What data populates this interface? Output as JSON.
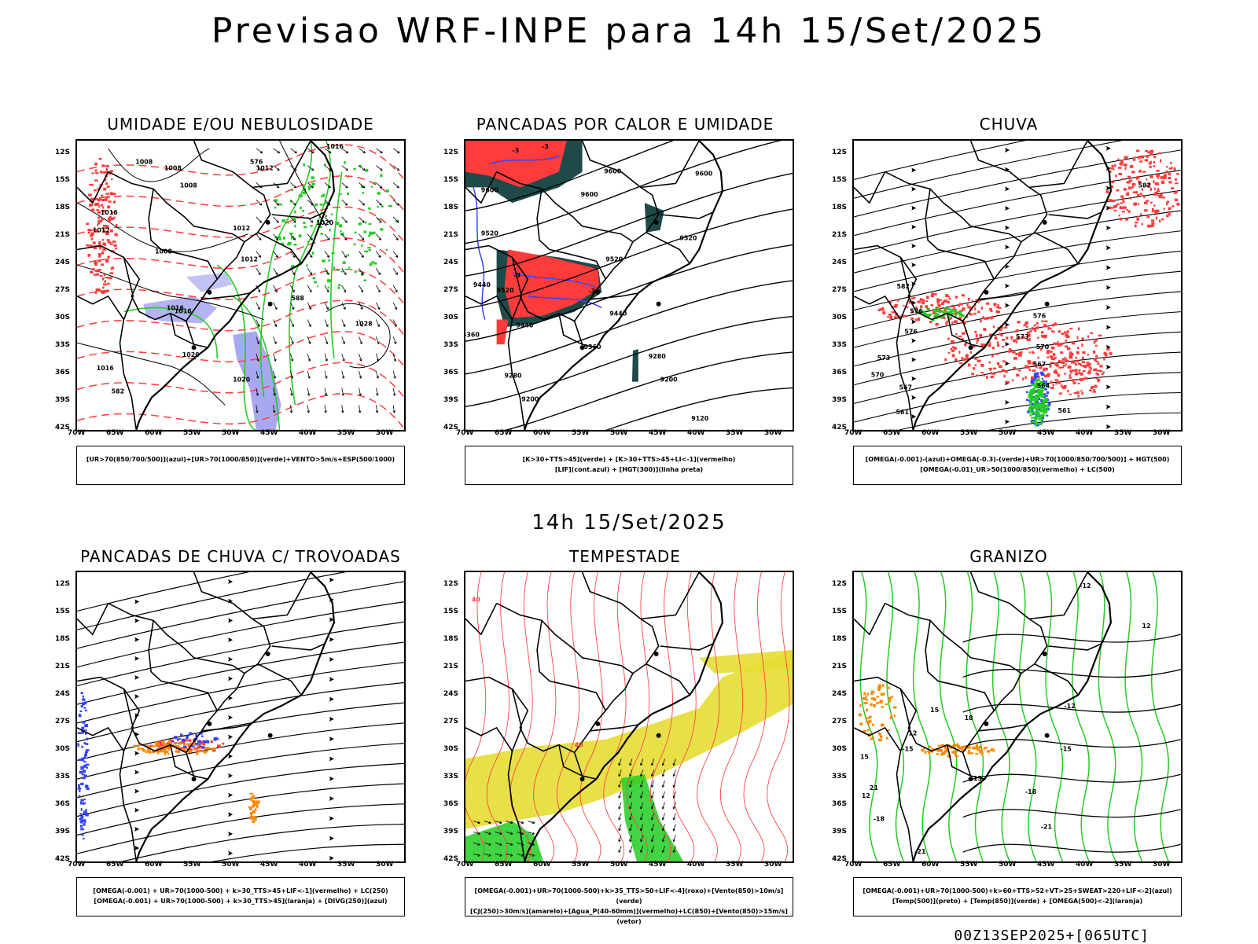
{
  "title": "Previsao WRF-INPE  para 14h 15/Set/2025",
  "mid_title": "14h 15/Set/2025",
  "footer": "00Z13SEP2025+[065UTC]",
  "axes": {
    "lat_labels": [
      "12S",
      "15S",
      "18S",
      "21S",
      "24S",
      "27S",
      "30S",
      "33S",
      "36S",
      "39S",
      "42S"
    ],
    "lon_labels": [
      "70W",
      "65W",
      "60W",
      "55W",
      "50W",
      "45W",
      "40W",
      "35W",
      "30W"
    ]
  },
  "colors": {
    "red": "#ff3b3b",
    "green": "#22cc22",
    "blue": "#3344ff",
    "lavender": "#9999ee",
    "teal": "#1e4a4a",
    "yellow": "#e6dd33",
    "orange": "#ff8800"
  },
  "panels": [
    {
      "title": "UMIDADE E/OU NEBULOSIDADE",
      "legend": [
        "[UR>70(850/700/500)](azul)+[UR>70(1000/850)](verde)+VENTO>5m/s+ESP(500/1000)"
      ],
      "labels": [
        {
          "t": "1008",
          "x": 75,
          "y": 30
        },
        {
          "t": "1008",
          "x": 112,
          "y": 38
        },
        {
          "t": "1008",
          "x": 132,
          "y": 60
        },
        {
          "t": "1016",
          "x": 320,
          "y": 10
        },
        {
          "t": "1012",
          "x": 230,
          "y": 38
        },
        {
          "t": "576",
          "x": 222,
          "y": 30
        },
        {
          "t": "1012",
          "x": 200,
          "y": 115
        },
        {
          "t": "1020",
          "x": 307,
          "y": 108
        },
        {
          "t": "1008",
          "x": 100,
          "y": 145
        },
        {
          "t": "1012",
          "x": 210,
          "y": 155
        },
        {
          "t": "1016",
          "x": 115,
          "y": 218
        },
        {
          "t": "1016",
          "x": 125,
          "y": 222
        },
        {
          "t": "1020",
          "x": 135,
          "y": 278
        },
        {
          "t": "1028",
          "x": 357,
          "y": 238
        },
        {
          "t": "1020",
          "x": 200,
          "y": 310
        },
        {
          "t": "1016",
          "x": 25,
          "y": 295
        },
        {
          "t": "582",
          "x": 44,
          "y": 325
        },
        {
          "t": "588",
          "x": 275,
          "y": 205
        },
        {
          "t": "1012",
          "x": 20,
          "y": 118
        },
        {
          "t": "1016",
          "x": 30,
          "y": 95
        }
      ]
    },
    {
      "title": "PANCADAS POR CALOR E UMIDADE",
      "legend": [
        "[K>30+TTS>45](verde) + [K>30+TTS>45+LI<-1](vermelho)",
        "[LIF](cont.azul) + [HGT(300)](linha preta)"
      ],
      "labels": [
        {
          "t": "9600",
          "x": 20,
          "y": 66
        },
        {
          "t": "9600",
          "x": 178,
          "y": 42
        },
        {
          "t": "9600",
          "x": 148,
          "y": 72
        },
        {
          "t": "9600",
          "x": 295,
          "y": 45
        },
        {
          "t": "9520",
          "x": 20,
          "y": 122
        },
        {
          "t": "9520",
          "x": 275,
          "y": 128
        },
        {
          "t": "9520",
          "x": 180,
          "y": 155
        },
        {
          "t": "9520",
          "x": 40,
          "y": 195
        },
        {
          "t": "9440",
          "x": 10,
          "y": 188
        },
        {
          "t": "9440",
          "x": 65,
          "y": 240
        },
        {
          "t": "9440",
          "x": 185,
          "y": 225
        },
        {
          "t": "9360",
          "x": 152,
          "y": 268
        },
        {
          "t": "9280",
          "x": 50,
          "y": 305
        },
        {
          "t": "9280",
          "x": 235,
          "y": 280
        },
        {
          "t": "9200",
          "x": 250,
          "y": 310
        },
        {
          "t": "9200",
          "x": 72,
          "y": 335
        },
        {
          "t": "9120",
          "x": 290,
          "y": 360
        },
        {
          "t": "-3",
          "x": 60,
          "y": 15
        },
        {
          "t": "-3",
          "x": 98,
          "y": 10
        },
        {
          "t": "-3",
          "x": 62,
          "y": 176
        },
        {
          "t": "-3",
          "x": 158,
          "y": 196
        },
        {
          "t": "-360",
          "x": -2,
          "y": 252
        }
      ]
    },
    {
      "title": "CHUVA",
      "legend": [
        "[OMEGA(-0.001)-(azul)+OMEGA(-0.3)-(verde)+UR>70(1000/850/700/500)] + HGT(500)",
        "[OMEGA(-0.01)_UR>50(1000/850)(vermelho) + LC(500)"
      ],
      "labels": [
        {
          "t": "582",
          "x": 365,
          "y": 60
        },
        {
          "t": "582",
          "x": 55,
          "y": 190
        },
        {
          "t": "576",
          "x": 72,
          "y": 222
        },
        {
          "t": "576",
          "x": 65,
          "y": 248
        },
        {
          "t": "576",
          "x": 230,
          "y": 228
        },
        {
          "t": "573",
          "x": 208,
          "y": 255
        },
        {
          "t": "573",
          "x": 30,
          "y": 282
        },
        {
          "t": "570",
          "x": 234,
          "y": 268
        },
        {
          "t": "570",
          "x": 22,
          "y": 304
        },
        {
          "t": "567",
          "x": 58,
          "y": 320
        },
        {
          "t": "567",
          "x": 230,
          "y": 290
        },
        {
          "t": "564",
          "x": 235,
          "y": 318
        },
        {
          "t": "561",
          "x": 54,
          "y": 352
        },
        {
          "t": "561",
          "x": 262,
          "y": 350
        }
      ]
    },
    {
      "title": "PANCADAS DE CHUVA C/ TROVOADAS",
      "legend": [
        "[OMEGA(-0.001) + UR>70(1000-500) + k>30_TTS>45+LIF<-1](vermelho) + LC(250)",
        "[OMEGA(-0.001) + UR>70(1000-500) + k>30_TTS>45](laranja) + [DIVG(250)](azul)"
      ],
      "labels": []
    },
    {
      "title": "TEMPESTADE",
      "legend": [
        "[OMEGA(-0.001)+UR>70(1000-500)+k>35_TTS>50+LIF<-4](roxo)+[Vento(850)>10m/s](verde)",
        "[CJ(250)>30m/s](amarelo)+[Agua_P(40-60mm)](vermelho)+LC(850)+[Vento(850)>15m/s](vetor)"
      ],
      "labels": [
        {
          "t": "40",
          "x": 8,
          "y": 38
        },
        {
          "t": "40",
          "x": 140,
          "y": 225
        }
      ]
    },
    {
      "title": "GRANIZO",
      "legend": [
        "[OMEGA(-0.001)+UR>70(1000-500)+k>60+TTS>52+VT>25+SWEAT>220+LIF<-2](azul)",
        "[Temp(500)](preto) + [Temp(850)](verde) + [OMEGA(500)<-2](laranja)"
      ],
      "labels": [
        {
          "t": "-12",
          "x": 290,
          "y": 20
        },
        {
          "t": "12",
          "x": 370,
          "y": 72
        },
        {
          "t": "12",
          "x": 70,
          "y": 210
        },
        {
          "t": "-15",
          "x": 62,
          "y": 230
        },
        {
          "t": "-12",
          "x": 270,
          "y": 175
        },
        {
          "t": "-15",
          "x": 265,
          "y": 230
        },
        {
          "t": "-15",
          "x": 150,
          "y": 268
        },
        {
          "t": "15",
          "x": 98,
          "y": 180
        },
        {
          "t": "18",
          "x": 142,
          "y": 190
        },
        {
          "t": "15",
          "x": 8,
          "y": 240
        },
        {
          "t": "12",
          "x": 10,
          "y": 290
        },
        {
          "t": "-18",
          "x": 220,
          "y": 285
        },
        {
          "t": "-18",
          "x": 25,
          "y": 320
        },
        {
          "t": "-21",
          "x": 240,
          "y": 330
        },
        {
          "t": "-21",
          "x": 78,
          "y": 362
        },
        {
          "t": "21",
          "x": 20,
          "y": 280
        }
      ]
    }
  ]
}
